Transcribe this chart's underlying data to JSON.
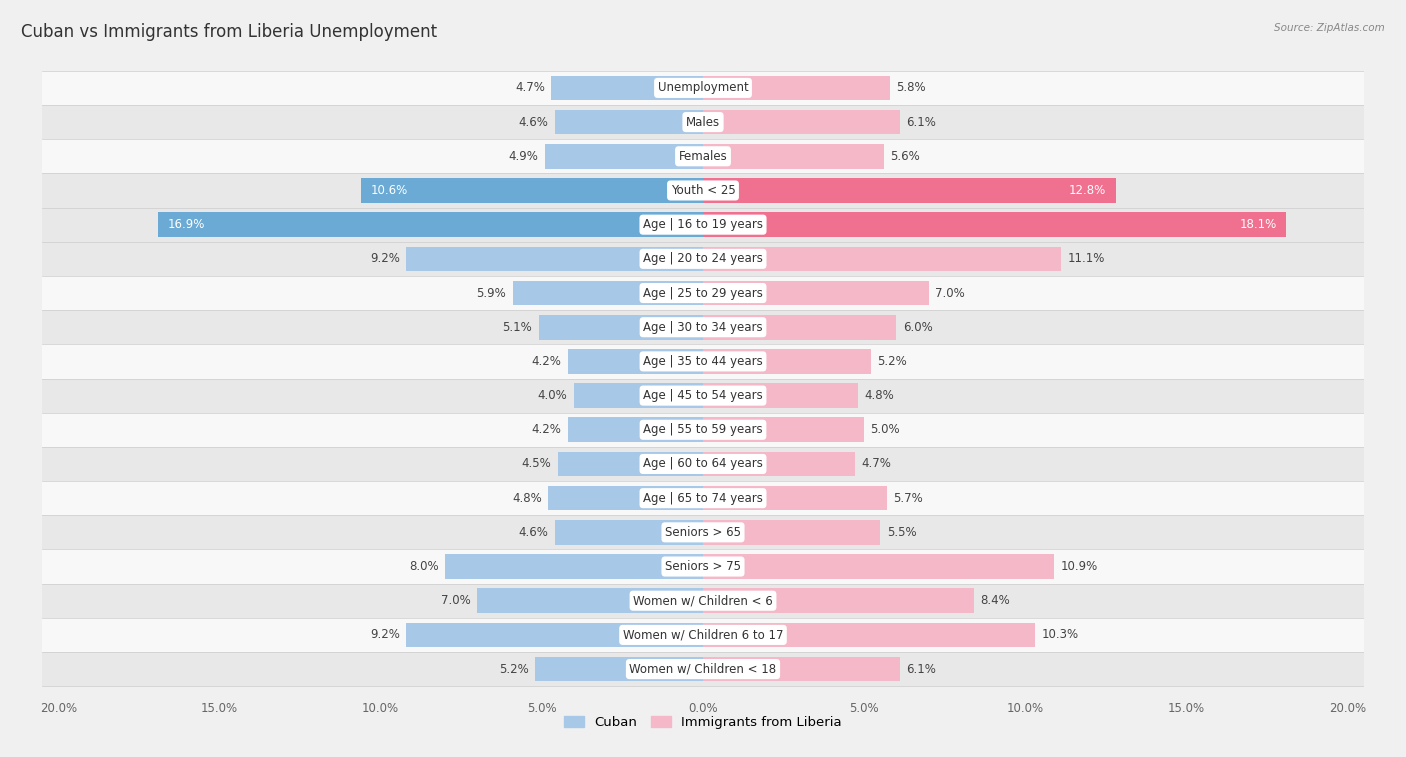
{
  "title": "Cuban vs Immigrants from Liberia Unemployment",
  "source": "Source: ZipAtlas.com",
  "categories": [
    "Unemployment",
    "Males",
    "Females",
    "Youth < 25",
    "Age | 16 to 19 years",
    "Age | 20 to 24 years",
    "Age | 25 to 29 years",
    "Age | 30 to 34 years",
    "Age | 35 to 44 years",
    "Age | 45 to 54 years",
    "Age | 55 to 59 years",
    "Age | 60 to 64 years",
    "Age | 65 to 74 years",
    "Seniors > 65",
    "Seniors > 75",
    "Women w/ Children < 6",
    "Women w/ Children 6 to 17",
    "Women w/ Children < 18"
  ],
  "cuban": [
    4.7,
    4.6,
    4.9,
    10.6,
    16.9,
    9.2,
    5.9,
    5.1,
    4.2,
    4.0,
    4.2,
    4.5,
    4.8,
    4.6,
    8.0,
    7.0,
    9.2,
    5.2
  ],
  "liberia": [
    5.8,
    6.1,
    5.6,
    12.8,
    18.1,
    11.1,
    7.0,
    6.0,
    5.2,
    4.8,
    5.0,
    4.7,
    5.7,
    5.5,
    10.9,
    8.4,
    10.3,
    6.1
  ],
  "cuban_color": "#a8c8e8",
  "liberia_color": "#f5b8c8",
  "cuban_highlight_color": "#6aaad4",
  "liberia_highlight_color": "#f07090",
  "highlight_rows": [
    3,
    4
  ],
  "bg_color": "#f0f0f0",
  "row_bg_even": "#f8f8f8",
  "row_bg_odd": "#e8e8e8",
  "max_val": 20.0,
  "legend_cuban": "Cuban",
  "legend_liberia": "Immigrants from Liberia",
  "title_fontsize": 12,
  "label_fontsize": 8.5,
  "value_fontsize": 8.5
}
